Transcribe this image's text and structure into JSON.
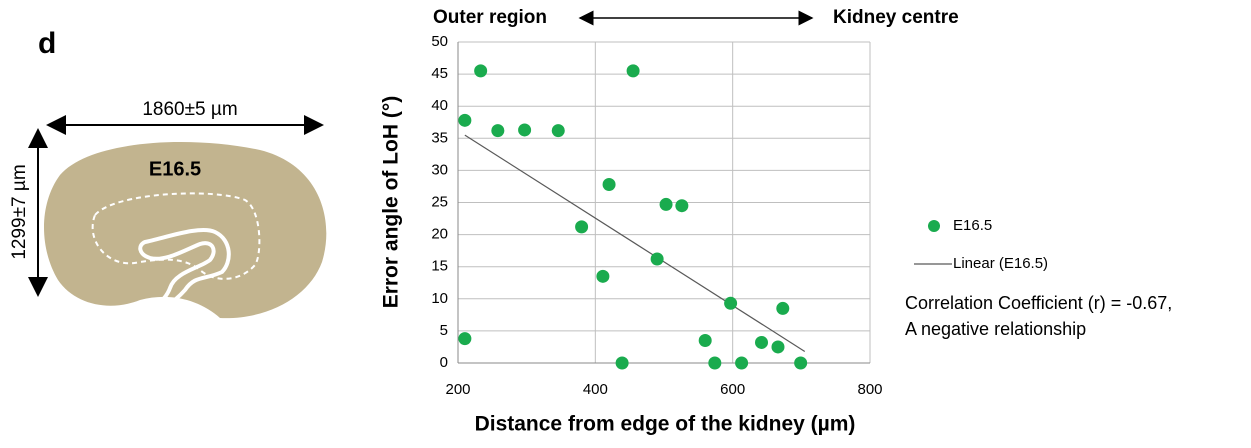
{
  "panel_label": "d",
  "diagram": {
    "stage": "E16.5",
    "width_label": "1860±5 µm",
    "height_label": "1299±7 µm"
  },
  "chart_data": {
    "type": "scatter",
    "direction": {
      "left": "Outer region",
      "right": "Kidney centre"
    },
    "x_label": "Distance from edge of the kidney  (µm)",
    "y_label": "Error angle of LoH (°)",
    "xlim": [
      200,
      800
    ],
    "xticks": [
      200,
      400,
      600,
      800
    ],
    "ylim": [
      0,
      50
    ],
    "yticks": [
      0,
      5,
      10,
      15,
      20,
      25,
      30,
      35,
      40,
      45,
      50
    ],
    "grid": true,
    "series": [
      {
        "name": "E16.5",
        "color": "#1aab4e",
        "x": [
          210,
          210,
          233,
          258,
          297,
          346,
          380,
          411,
          420,
          439,
          455,
          490,
          503,
          526,
          560,
          574,
          597,
          613,
          642,
          666,
          673,
          699
        ],
        "values": [
          3.8,
          37.8,
          45.5,
          36.2,
          36.3,
          36.2,
          21.2,
          13.5,
          27.8,
          0,
          45.5,
          16.2,
          24.7,
          24.5,
          3.5,
          0,
          9.3,
          0,
          3.2,
          2.5,
          8.5,
          0
        ]
      }
    ],
    "trendline": {
      "name": "Linear (E16.5)",
      "color": "#595959",
      "x": [
        210,
        705
      ],
      "values": [
        35.5,
        1.8
      ]
    },
    "annotation": [
      "Correlation Coefficient (r) = -0.67,",
      " A negative relationship"
    ]
  }
}
